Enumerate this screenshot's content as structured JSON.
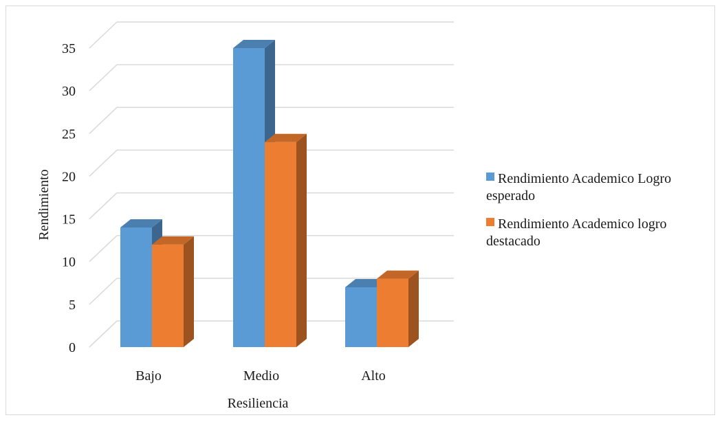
{
  "chart_data": {
    "type": "bar",
    "title": "",
    "xlabel": "Resiliencia",
    "ylabel": "Rendimiento",
    "categories": [
      "Bajo",
      "Medio",
      "Alto"
    ],
    "ylim": [
      0,
      35
    ],
    "yticks": [
      0,
      5,
      10,
      15,
      20,
      25,
      30,
      35
    ],
    "grid": true,
    "legend_position": "right",
    "series": [
      {
        "name": "Rendimiento Academico Logro esperado",
        "legend_lines": [
          "Rendimiento Academico Logro",
          "esperado"
        ],
        "values": [
          14,
          35,
          7
        ],
        "color": "#5b9bd5"
      },
      {
        "name": "Rendimiento Academico logro destacado",
        "legend_lines": [
          "Rendimiento Academico logro",
          "destacado"
        ],
        "values": [
          12,
          24,
          8
        ],
        "color": "#ed7d31"
      }
    ]
  }
}
